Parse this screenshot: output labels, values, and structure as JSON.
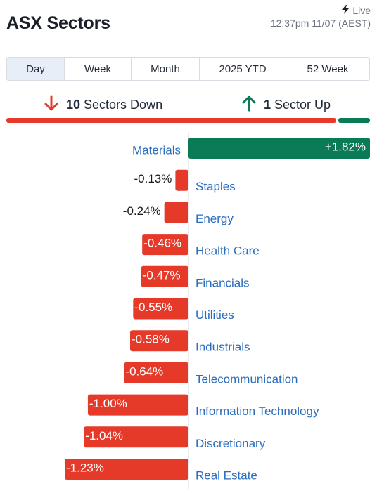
{
  "header": {
    "title": "ASX Sectors",
    "live_label": "Live",
    "timestamp": "12:37pm 11/07 (AEST)"
  },
  "tabs": [
    {
      "label": "Day",
      "active": true
    },
    {
      "label": "Week",
      "active": false
    },
    {
      "label": "Month",
      "active": false
    },
    {
      "label": "2025 YTD",
      "active": false
    },
    {
      "label": "52 Week",
      "active": false
    }
  ],
  "summary": {
    "down_count": "10",
    "down_label": "Sectors Down",
    "up_count": "1",
    "up_label": "Sector Up",
    "down_fraction": 0.909
  },
  "colors": {
    "negative": "#e53a2a",
    "positive": "#0b7a57",
    "link": "#2a6cbd"
  },
  "icons": {
    "down": "arrow-down-icon",
    "up": "arrow-up-icon",
    "live": "lightning-icon"
  },
  "chart_data": {
    "type": "bar",
    "orientation": "horizontal",
    "title": "",
    "xlabel": "",
    "ylabel": "",
    "categories": [
      "Materials",
      "Staples",
      "Energy",
      "Health Care",
      "Financials",
      "Utilities",
      "Industrials",
      "Telecommunication",
      "Information Technology",
      "Discretionary",
      "Real Estate"
    ],
    "values": [
      1.82,
      -0.13,
      -0.24,
      -0.46,
      -0.47,
      -0.55,
      -0.58,
      -0.64,
      -1.0,
      -1.04,
      -1.23
    ],
    "value_labels": [
      "+1.82%",
      "-0.13%",
      "-0.24%",
      "-0.46%",
      "-0.47%",
      "-0.55%",
      "-0.58%",
      "-0.64%",
      "-1.00%",
      "-1.04%",
      "-1.23%"
    ],
    "unit": "%",
    "grid": false,
    "legend": "none"
  }
}
